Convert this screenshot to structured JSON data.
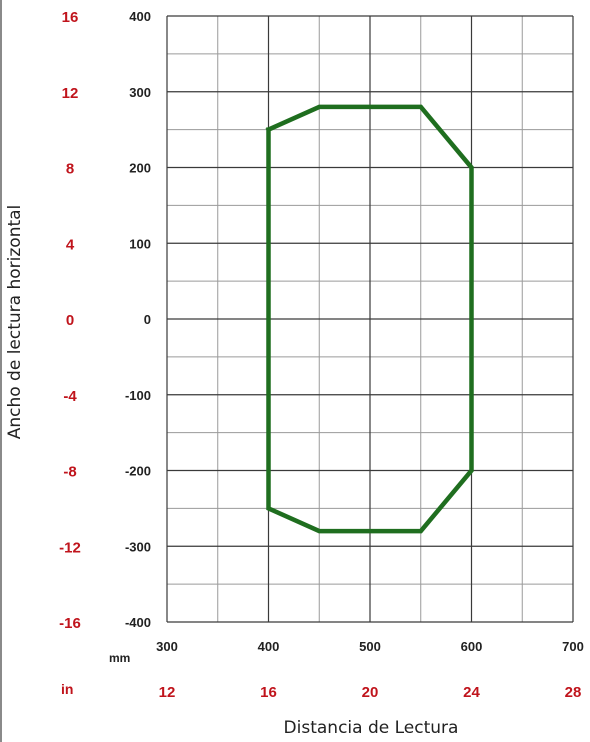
{
  "chart_data": {
    "type": "line",
    "title": "",
    "xlabel": "Distancia de Lectura",
    "ylabel": "Ancho de lectura horizontal",
    "x_unit_primary": "mm",
    "x_unit_secondary": "in",
    "xlim": [
      300,
      700
    ],
    "ylim": [
      -400,
      400
    ],
    "x_ticks_mm": [
      "300",
      "400",
      "500",
      "600",
      "700"
    ],
    "x_ticks_in": [
      "12",
      "16",
      "20",
      "24",
      "28"
    ],
    "y_ticks_mm": [
      "400",
      "300",
      "200",
      "100",
      "0",
      "-100",
      "-200",
      "-300",
      "-400"
    ],
    "y_ticks_in": [
      "16",
      "12",
      "8",
      "4",
      "0",
      "-4",
      "-8",
      "-12",
      "-16"
    ],
    "grid": true,
    "series": [
      {
        "color": "#1f6e1f",
        "closed": true,
        "x": [
          400,
          450,
          550,
          600,
          600,
          550,
          450,
          400,
          400
        ],
        "y": [
          250,
          280,
          280,
          200,
          -200,
          -280,
          -280,
          -250,
          250
        ]
      }
    ]
  }
}
